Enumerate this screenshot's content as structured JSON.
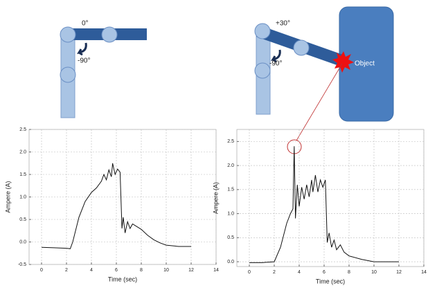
{
  "diagram": {
    "left_angles": [
      "0°",
      "-90°"
    ],
    "right_angles": [
      "+30°",
      "-90°"
    ],
    "object": "Object"
  },
  "chart_data": [
    {
      "type": "line",
      "x_label": "Time (sec)",
      "y_label": "Ampere (A)",
      "x": [
        0,
        1,
        2,
        2.3,
        2.5,
        3,
        3.5,
        4,
        4.4,
        4.8,
        5.0,
        5.2,
        5.4,
        5.6,
        5.7,
        5.9,
        6.1,
        6.3,
        6.45,
        6.55,
        6.7,
        6.9,
        7.1,
        7.3,
        7.6,
        8,
        8.5,
        9,
        9.5,
        10,
        11,
        12
      ],
      "series": [
        {
          "color": "#111111",
          "values": [
            -0.12,
            -0.13,
            -0.14,
            -0.15,
            0.0,
            0.55,
            0.9,
            1.1,
            1.2,
            1.35,
            1.5,
            1.38,
            1.6,
            1.45,
            1.75,
            1.5,
            1.62,
            1.55,
            0.3,
            0.55,
            0.2,
            0.45,
            0.3,
            0.4,
            0.35,
            0.28,
            0.15,
            0.05,
            -0.02,
            -0.07,
            -0.1,
            -0.1
          ]
        }
      ],
      "xlim": [
        -1,
        14
      ],
      "ylim": [
        -0.5,
        2.5
      ],
      "xticks": [
        0,
        2,
        4,
        6,
        8,
        10,
        12,
        14
      ],
      "yticks": [
        -0.5,
        {
          "value": 0,
          "label": "0.0"
        },
        0.5,
        {
          "value": 1,
          "label": "1.0"
        },
        1.5,
        {
          "value": 2,
          "label": "2.0"
        },
        2.5
      ],
      "grid": true
    },
    {
      "type": "line",
      "x_label": "Time (sec)",
      "y_label": "Ampere (A)",
      "x": [
        0,
        1,
        2,
        2.5,
        3,
        3.3,
        3.5,
        3.6,
        3.7,
        3.85,
        4.0,
        4.2,
        4.4,
        4.6,
        4.8,
        5.0,
        5.1,
        5.3,
        5.5,
        5.7,
        5.9,
        6.1,
        6.25,
        6.4,
        6.6,
        6.8,
        7.0,
        7.3,
        7.6,
        8,
        9,
        10,
        11,
        12
      ],
      "series": [
        {
          "color": "#111111",
          "values": [
            -0.02,
            -0.02,
            0.0,
            0.3,
            0.8,
            1.0,
            1.1,
            2.4,
            0.9,
            1.6,
            1.15,
            1.55,
            1.3,
            1.6,
            1.35,
            1.7,
            1.45,
            1.8,
            1.45,
            1.7,
            1.55,
            1.7,
            0.4,
            0.6,
            0.3,
            0.45,
            0.25,
            0.35,
            0.2,
            0.12,
            0.05,
            0.0,
            0.0,
            0.0
          ]
        }
      ],
      "xlim": [
        -1,
        14
      ],
      "ylim": [
        -0.1,
        2.75
      ],
      "xticks": [
        0,
        2,
        4,
        6,
        8,
        10,
        12,
        14
      ],
      "yticks": [
        {
          "value": 0,
          "label": "0.0"
        },
        0.5,
        {
          "value": 1,
          "label": "1.0"
        },
        1.5,
        {
          "value": 2,
          "label": "2.0"
        },
        2.5
      ],
      "grid": true
    }
  ]
}
